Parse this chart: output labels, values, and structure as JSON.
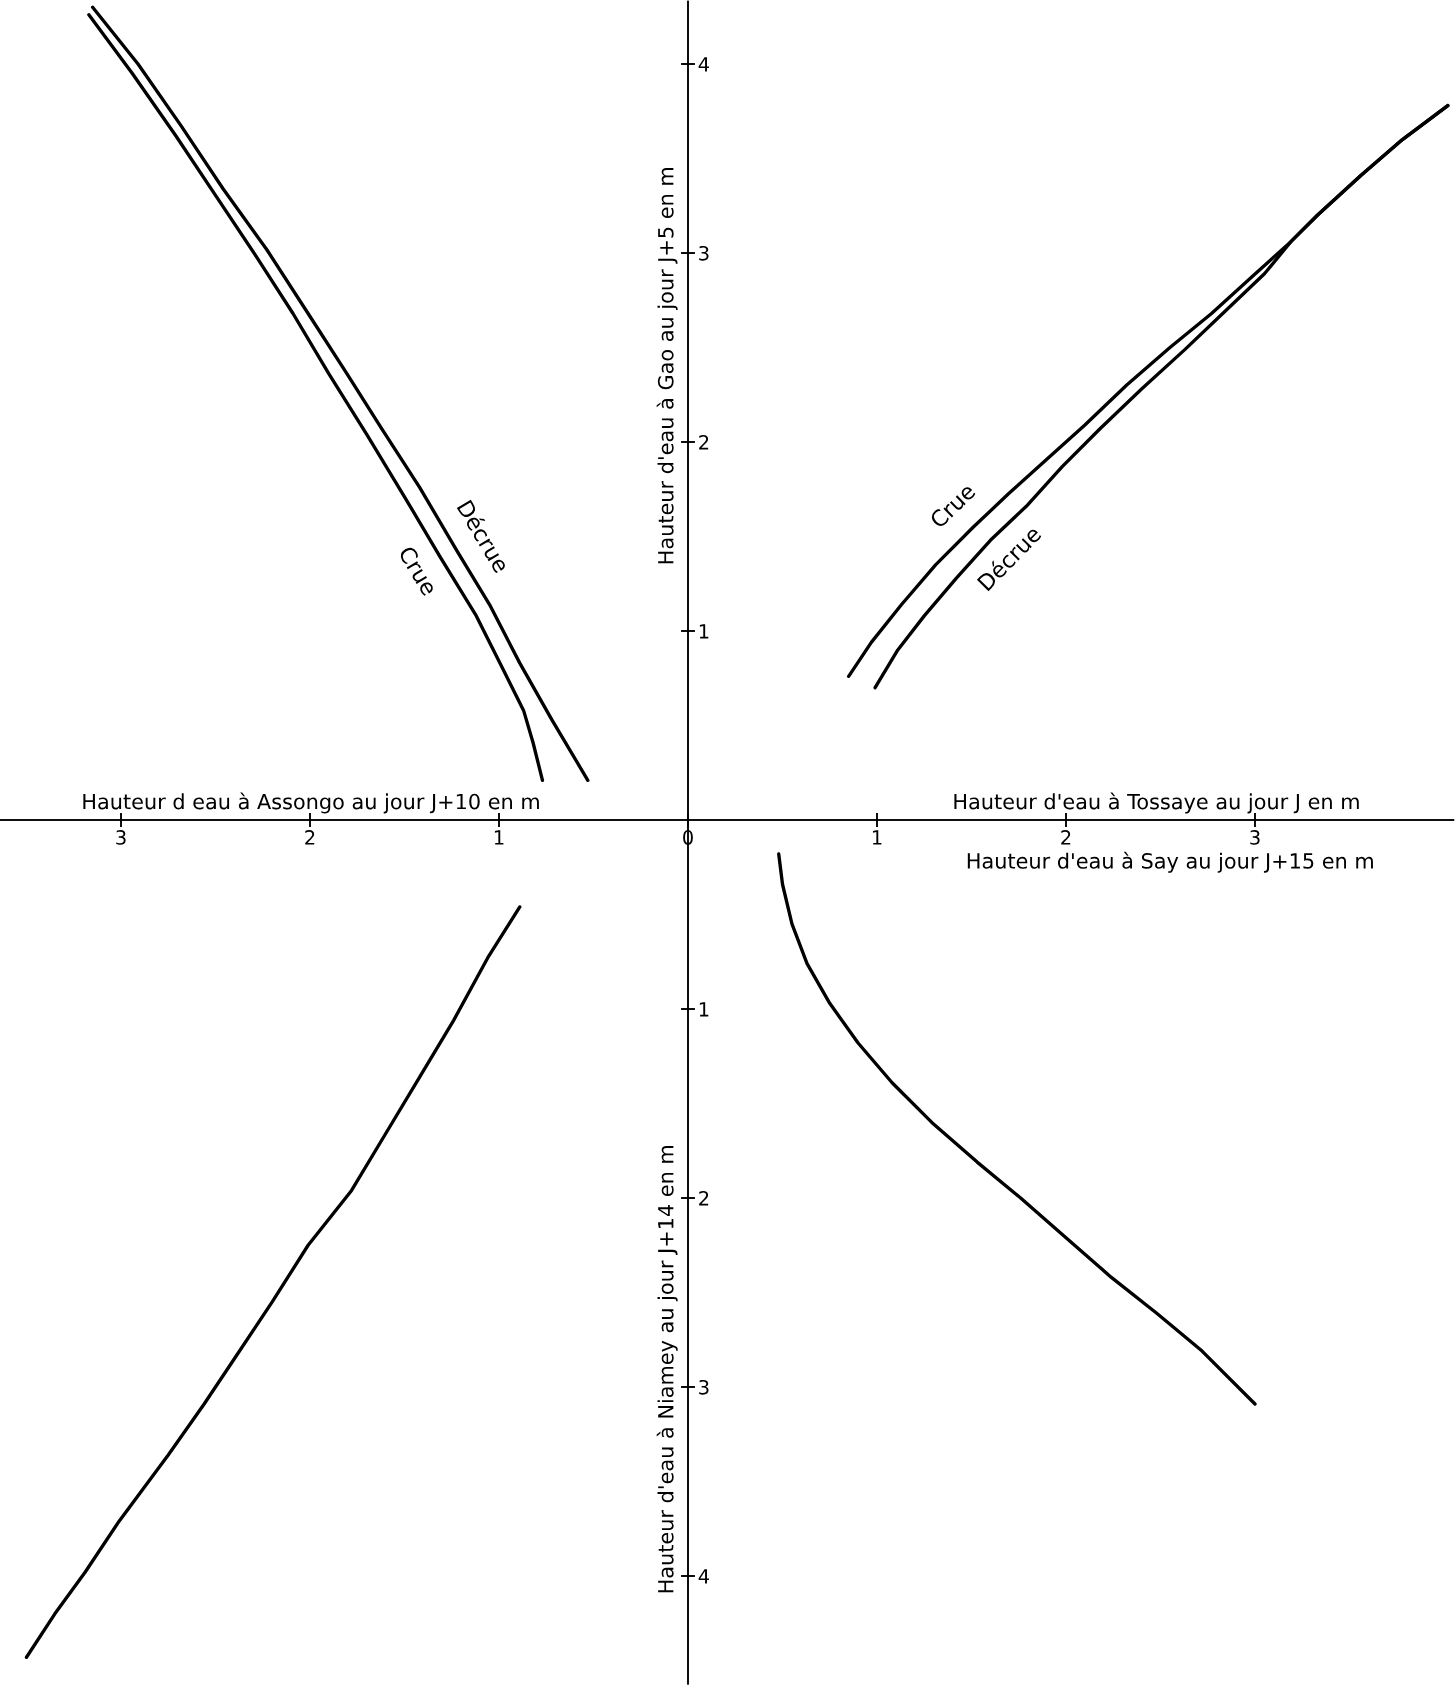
{
  "chart_data": [
    {
      "type": "line",
      "xlabel": "Hauteur d eau à Assongo au jour J+10 en m",
      "ylabel": "Hauteur d'eau à Gao au jour J+5 en m",
      "xlim": [
        3.64,
        0
      ],
      "ylim": [
        0,
        4.33
      ],
      "xticks": [
        3,
        2,
        1
      ],
      "yticks": [
        1,
        2,
        3,
        4
      ],
      "series": [
        {
          "name": "Crue",
          "color": "#000000",
          "x": [
            3.17,
            2.94,
            2.71,
            2.49,
            2.29,
            2.09,
            1.9,
            1.7,
            1.5,
            1.31,
            1.12,
            0.98,
            0.87,
            0.82,
            0.77
          ],
          "values": [
            4.26,
            3.95,
            3.62,
            3.29,
            2.99,
            2.68,
            2.36,
            2.04,
            1.71,
            1.39,
            1.08,
            0.8,
            0.58,
            0.41,
            0.21
          ]
        },
        {
          "name": "Décrue",
          "color": "#000000",
          "x": [
            3.15,
            2.91,
            2.68,
            2.46,
            2.23,
            2.01,
            1.81,
            1.62,
            1.42,
            1.22,
            1.05,
            0.89,
            0.72,
            0.53
          ],
          "values": [
            4.3,
            4.0,
            3.67,
            3.34,
            3.02,
            2.68,
            2.37,
            2.07,
            1.76,
            1.42,
            1.14,
            0.83,
            0.53,
            0.21
          ]
        }
      ]
    },
    {
      "type": "line",
      "xlabel": "Hauteur d'eau à Tossaye au jour J en m",
      "xlim": [
        0,
        4.05
      ],
      "ylim": [
        0,
        4.33
      ],
      "xticks": [
        0,
        1,
        2,
        3
      ],
      "yticks": [
        1,
        2,
        3,
        4
      ],
      "tick_labels": "x",
      "series": [
        {
          "name": "Crue",
          "color": "#000000",
          "x": [
            0.85,
            0.97,
            1.13,
            1.31,
            1.51,
            1.7,
            1.9,
            2.1,
            2.32,
            2.55,
            2.77,
            2.99,
            3.19,
            3.33,
            3.56,
            3.78,
            4.02
          ],
          "values": [
            0.76,
            0.94,
            1.14,
            1.35,
            1.55,
            1.73,
            1.91,
            2.09,
            2.3,
            2.5,
            2.68,
            2.88,
            3.06,
            3.2,
            3.41,
            3.6,
            3.78
          ]
        },
        {
          "name": "Décrue",
          "color": "#000000",
          "x": [
            0.99,
            1.11,
            1.25,
            1.42,
            1.6,
            1.79,
            1.98,
            2.18,
            2.4,
            2.63,
            2.85,
            3.05,
            3.19,
            3.33,
            3.56,
            3.78,
            4.02
          ],
          "values": [
            0.7,
            0.9,
            1.08,
            1.28,
            1.48,
            1.66,
            1.87,
            2.07,
            2.28,
            2.49,
            2.7,
            2.89,
            3.06,
            3.2,
            3.41,
            3.6,
            3.78
          ]
        }
      ]
    },
    {
      "type": "line",
      "ylabel": "Hauteur d'eau à Niamey au jour J+14 en m",
      "xlim": [
        3.64,
        0
      ],
      "ylim": [
        4.57,
        0
      ],
      "xticks": [
        3,
        2,
        1
      ],
      "yticks": [
        1,
        2,
        3,
        4
      ],
      "tick_labels": "y",
      "series": [
        {
          "color": "#000000",
          "x": [
            0.89,
            1.06,
            1.24,
            1.42,
            1.6,
            1.78,
            2.01,
            2.2,
            2.38,
            2.56,
            2.75,
            3.01,
            3.19,
            3.35,
            3.5
          ],
          "values": [
            0.46,
            0.73,
            1.06,
            1.36,
            1.66,
            1.96,
            2.25,
            2.55,
            2.82,
            3.09,
            3.36,
            3.71,
            3.98,
            4.2,
            4.43
          ]
        }
      ]
    },
    {
      "type": "line",
      "xlabel": "Hauteur d'eau à Say au jour J+15 en m",
      "xlim": [
        0,
        4.05
      ],
      "ylim": [
        4.57,
        0
      ],
      "xticks": [
        1,
        2,
        3
      ],
      "yticks": [
        1,
        2,
        3,
        4
      ],
      "tick_labels": false,
      "series": [
        {
          "color": "#000000",
          "x": [
            0.48,
            0.5,
            0.55,
            0.63,
            0.75,
            0.9,
            1.08,
            1.29,
            1.53,
            1.76,
            2.0,
            2.24,
            2.48,
            2.72,
            3.0
          ],
          "values": [
            0.18,
            0.34,
            0.55,
            0.76,
            0.97,
            1.18,
            1.39,
            1.6,
            1.81,
            2.0,
            2.21,
            2.42,
            2.61,
            2.81,
            3.09
          ]
        }
      ]
    }
  ]
}
